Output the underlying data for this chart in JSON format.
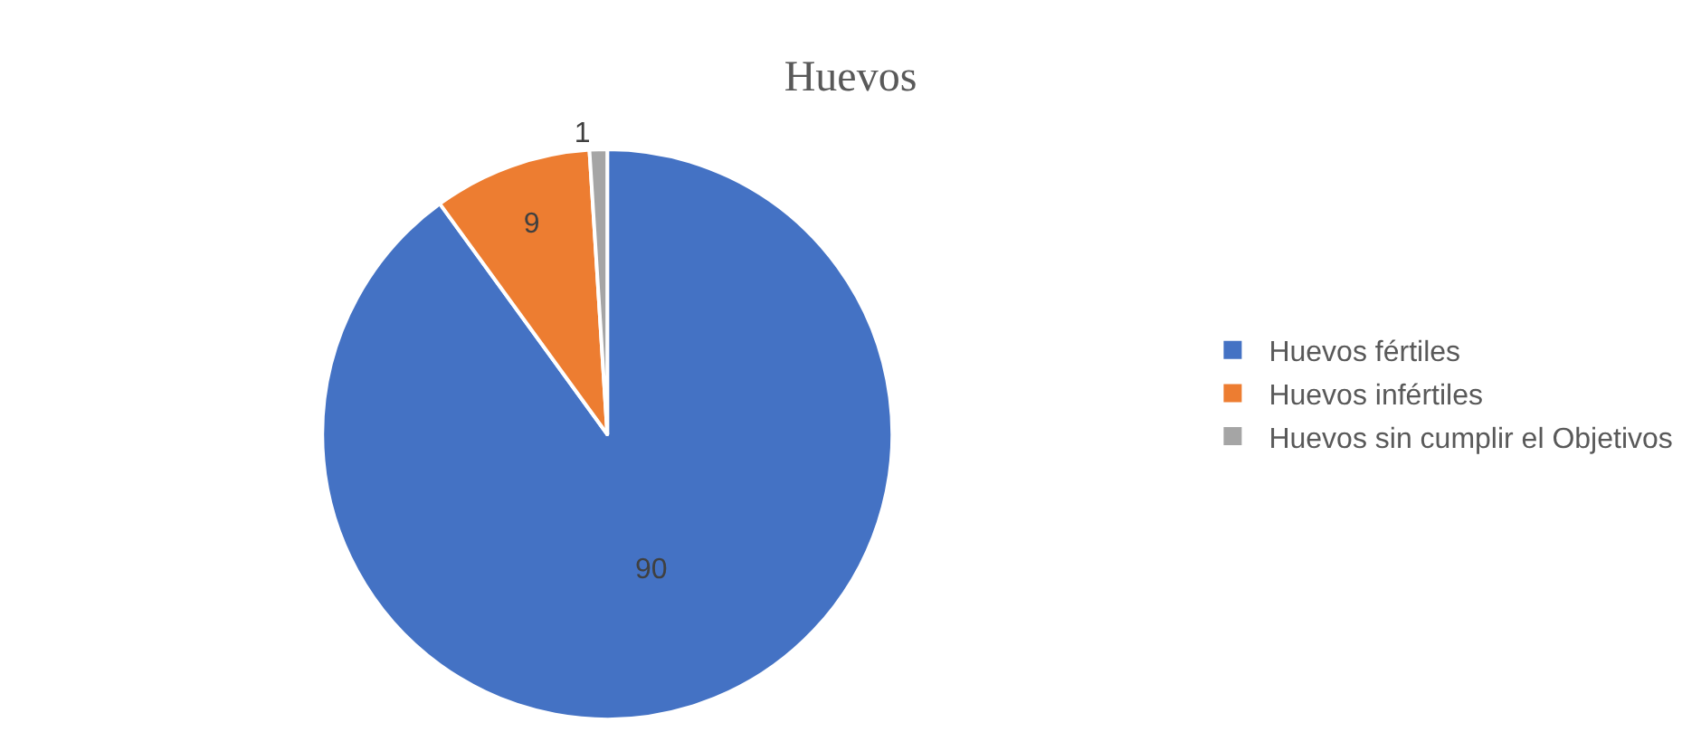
{
  "chart_data": {
    "type": "pie",
    "title": "Huevos",
    "categories": [
      "Huevos fértiles",
      "Huevos infértiles",
      "Huevos sin cumplir el Objetivos"
    ],
    "values": [
      90,
      9,
      1
    ],
    "colors": [
      "#4472c4",
      "#ed7d31",
      "#a5a5a5"
    ],
    "data_labels": true,
    "legend": "right"
  }
}
